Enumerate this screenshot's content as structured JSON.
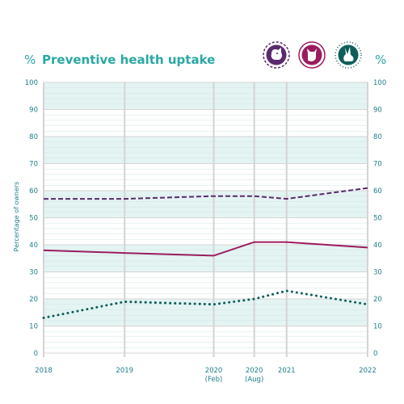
{
  "chart_data": {
    "type": "line",
    "title": "Preventive health uptake",
    "title_unit_left": "%",
    "title_unit_right": "%",
    "ylabel": "Percentage of owners",
    "ylim": [
      0,
      100
    ],
    "yticks": [
      0,
      10,
      20,
      30,
      40,
      50,
      60,
      70,
      80,
      90,
      100
    ],
    "x": [
      2018,
      2019,
      2020.1,
      2020.6,
      2021,
      2022
    ],
    "x_labels": [
      {
        "year": "2018",
        "note": ""
      },
      {
        "year": "2019",
        "note": ""
      },
      {
        "year": "2020",
        "note": "(Feb)"
      },
      {
        "year": "2020",
        "note": "(Aug)"
      },
      {
        "year": "2021",
        "note": ""
      },
      {
        "year": "2022",
        "note": ""
      }
    ],
    "grid": true,
    "series": [
      {
        "icon": "dog-icon",
        "style": "dashed",
        "color": "#5b2a6e",
        "values": [
          57,
          57,
          58,
          58,
          57,
          61
        ]
      },
      {
        "icon": "cat-icon",
        "style": "solid",
        "color": "#9b1c5e",
        "values": [
          38,
          37,
          36,
          41,
          41,
          39
        ]
      },
      {
        "icon": "rabbit-icon",
        "style": "dotted",
        "color": "#0f5e5a",
        "values": [
          13,
          19,
          18,
          20,
          23,
          18
        ]
      }
    ],
    "colors": {
      "band": "#e4f4f3",
      "minor_grid": "#cfe3e3",
      "major_grid": "#d4d4d4",
      "text": "#1f7f86",
      "title": "#2aa8a4"
    }
  }
}
